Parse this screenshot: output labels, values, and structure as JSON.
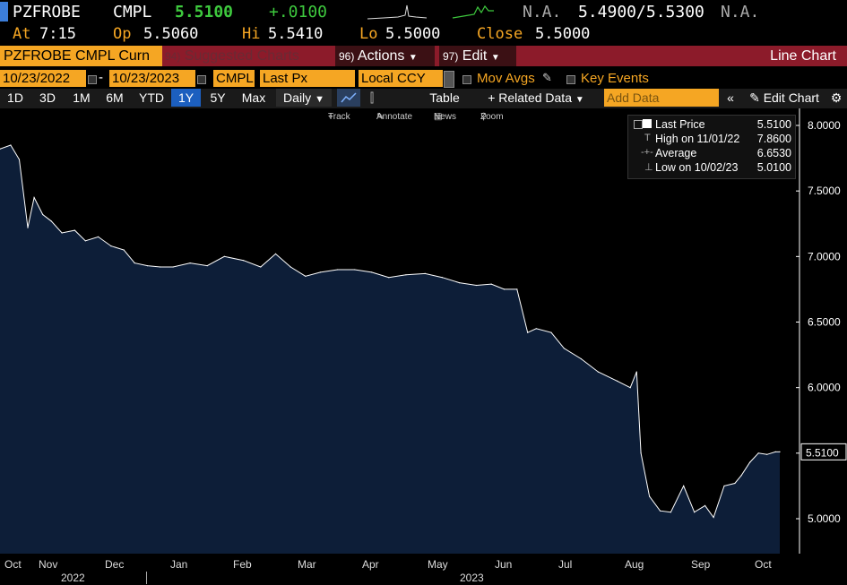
{
  "quote": {
    "ticker": "PZFROBE",
    "exchange": "CMPL",
    "last": "5.5100",
    "change": "+.0100",
    "na1": "N.A.",
    "bid_ask": "5.4900/5.5300",
    "na2": "N.A.",
    "at_label": "At",
    "at_time": "7:15",
    "op_label": "Op",
    "op": "5.5060",
    "hi_label": "Hi",
    "hi": "5.5410",
    "lo_label": "Lo",
    "lo": "5.5000",
    "close_label": "Close",
    "close": "5.5000"
  },
  "toolbar": {
    "security": "PZFROBE CMPL Curn",
    "suggested_num": "94)",
    "suggested": "Suggested Charts",
    "actions_num": "96)",
    "actions": "Actions",
    "edit_num": "97)",
    "edit": "Edit",
    "chart_type": "Line Chart"
  },
  "range": {
    "start": "10/23/2022",
    "end": "10/23/2023",
    "source": "CMPL",
    "field": "Last Px",
    "currency": "Local CCY",
    "mov_avgs": "Mov Avgs",
    "key_events": "Key Events"
  },
  "periods": [
    "1D",
    "3D",
    "1M",
    "6M",
    "YTD",
    "1Y",
    "5Y",
    "Max"
  ],
  "active_period": "1Y",
  "frequency": "Daily",
  "menu": {
    "table": "Table",
    "related": "+ Related Data",
    "add_data": "Add Data",
    "edit_chart": "Edit Chart"
  },
  "tools": {
    "track": "Track",
    "annotate": "Annotate",
    "news": "News",
    "zoom": "Zoom"
  },
  "legend": {
    "last_label": "Last Price",
    "last_value": "5.5100",
    "high_label": "High on 11/01/22",
    "high_value": "7.8600",
    "avg_label": "Average",
    "avg_value": "6.6530",
    "low_label": "Low on 10/02/23",
    "low_value": "5.0100"
  },
  "colors": {
    "accent": "#f5a623",
    "up": "#3ec93e",
    "toolbar": "#8c1b2a",
    "fill": "#0d1e38",
    "active": "#1c5fbf"
  },
  "chart_data": {
    "type": "area",
    "ylim": [
      4.85,
      8.1
    ],
    "yticks": [
      "8.0000",
      "7.5000",
      "7.0000",
      "6.5000",
      "6.0000",
      "5.5000",
      "5.0000"
    ],
    "current_label": "5.5100",
    "months": [
      "Oct",
      "Nov",
      "Dec",
      "Jan",
      "Feb",
      "Mar",
      "Apr",
      "May",
      "Jun",
      "Jul",
      "Aug",
      "Sep",
      "Oct"
    ],
    "years": [
      "2022",
      "2023"
    ],
    "x": [
      "2022-10-23",
      "2022-10-28",
      "2022-11-01",
      "2022-11-05",
      "2022-11-08",
      "2022-11-12",
      "2022-11-16",
      "2022-11-21",
      "2022-11-27",
      "2022-12-02",
      "2022-12-08",
      "2022-12-14",
      "2022-12-20",
      "2022-12-25",
      "2022-12-31",
      "2023-01-06",
      "2023-01-12",
      "2023-01-20",
      "2023-01-28",
      "2023-02-05",
      "2023-02-14",
      "2023-02-22",
      "2023-03-01",
      "2023-03-08",
      "2023-03-15",
      "2023-03-22",
      "2023-03-30",
      "2023-04-07",
      "2023-04-15",
      "2023-04-23",
      "2023-05-01",
      "2023-05-10",
      "2023-05-18",
      "2023-05-26",
      "2023-06-03",
      "2023-06-10",
      "2023-06-16",
      "2023-06-22",
      "2023-06-27",
      "2023-07-01",
      "2023-07-08",
      "2023-07-14",
      "2023-07-22",
      "2023-07-30",
      "2023-08-08",
      "2023-08-14",
      "2023-08-17",
      "2023-08-19",
      "2023-08-23",
      "2023-08-28",
      "2023-09-02",
      "2023-09-08",
      "2023-09-13",
      "2023-09-18",
      "2023-09-22",
      "2023-09-27",
      "2023-10-02",
      "2023-10-05",
      "2023-10-09",
      "2023-10-13",
      "2023-10-17",
      "2023-10-21",
      "2023-10-23"
    ],
    "y": [
      7.82,
      7.85,
      7.74,
      7.22,
      7.45,
      7.32,
      7.27,
      7.18,
      7.2,
      7.12,
      7.15,
      7.08,
      7.05,
      6.95,
      6.93,
      6.92,
      6.92,
      6.95,
      6.93,
      7.0,
      6.97,
      6.92,
      7.02,
      6.92,
      6.85,
      6.88,
      6.9,
      6.9,
      6.88,
      6.84,
      6.86,
      6.87,
      6.84,
      6.8,
      6.78,
      6.79,
      6.75,
      6.75,
      6.42,
      6.45,
      6.42,
      6.3,
      6.22,
      6.12,
      6.05,
      6.0,
      6.12,
      5.5,
      5.17,
      5.06,
      5.05,
      5.25,
      5.05,
      5.1,
      5.01,
      5.25,
      5.27,
      5.33,
      5.43,
      5.5,
      5.49,
      5.51,
      5.51
    ]
  }
}
